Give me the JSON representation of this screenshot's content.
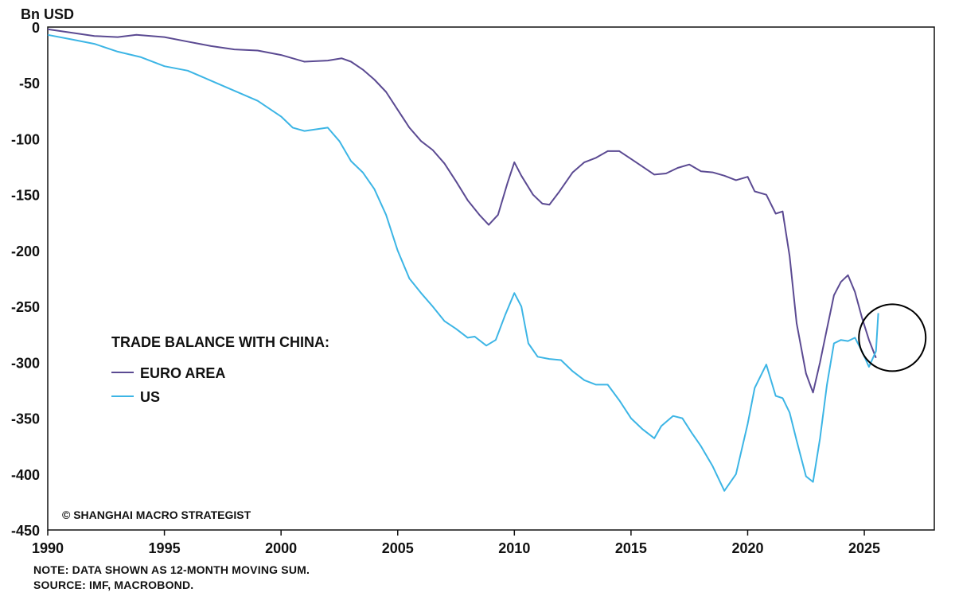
{
  "chart_data": {
    "type": "line",
    "ylabel": "Bn USD",
    "ylim": [
      -450,
      0
    ],
    "xlim": [
      1990,
      2028
    ],
    "yticks": [
      0,
      -50,
      -100,
      -150,
      -200,
      -250,
      -300,
      -350,
      -400,
      -450
    ],
    "xticks": [
      1990,
      1995,
      2000,
      2005,
      2010,
      2015,
      2020,
      2025
    ],
    "grid": false,
    "legend": {
      "title": "TRADE BALANCE WITH CHINA:",
      "position": "left-middle"
    },
    "series": [
      {
        "name": "EURO AREA",
        "color": "#5b4a92",
        "points": [
          [
            1990.0,
            -2
          ],
          [
            1991.0,
            -5
          ],
          [
            1992.0,
            -8
          ],
          [
            1993.0,
            -9
          ],
          [
            1993.8,
            -7
          ],
          [
            1995.0,
            -9
          ],
          [
            1996.0,
            -13
          ],
          [
            1997.0,
            -17
          ],
          [
            1998.0,
            -20
          ],
          [
            1999.0,
            -21
          ],
          [
            2000.0,
            -25
          ],
          [
            2001.0,
            -31
          ],
          [
            2002.0,
            -30
          ],
          [
            2002.6,
            -28
          ],
          [
            2003.0,
            -31
          ],
          [
            2003.5,
            -38
          ],
          [
            2004.0,
            -47
          ],
          [
            2004.5,
            -58
          ],
          [
            2005.0,
            -74
          ],
          [
            2005.5,
            -90
          ],
          [
            2006.0,
            -102
          ],
          [
            2006.5,
            -110
          ],
          [
            2007.0,
            -122
          ],
          [
            2007.5,
            -138
          ],
          [
            2008.0,
            -155
          ],
          [
            2008.5,
            -168
          ],
          [
            2008.9,
            -177
          ],
          [
            2009.3,
            -168
          ],
          [
            2009.7,
            -140
          ],
          [
            2010.0,
            -121
          ],
          [
            2010.3,
            -133
          ],
          [
            2010.8,
            -150
          ],
          [
            2011.2,
            -158
          ],
          [
            2011.5,
            -159
          ],
          [
            2011.9,
            -148
          ],
          [
            2012.5,
            -130
          ],
          [
            2013.0,
            -121
          ],
          [
            2013.5,
            -117
          ],
          [
            2014.0,
            -111
          ],
          [
            2014.5,
            -111
          ],
          [
            2015.0,
            -118
          ],
          [
            2015.5,
            -125
          ],
          [
            2016.0,
            -132
          ],
          [
            2016.5,
            -131
          ],
          [
            2017.0,
            -126
          ],
          [
            2017.5,
            -123
          ],
          [
            2018.0,
            -129
          ],
          [
            2018.5,
            -130
          ],
          [
            2019.0,
            -133
          ],
          [
            2019.5,
            -137
          ],
          [
            2020.0,
            -134
          ],
          [
            2020.3,
            -147
          ],
          [
            2020.8,
            -150
          ],
          [
            2021.2,
            -167
          ],
          [
            2021.5,
            -165
          ],
          [
            2021.8,
            -205
          ],
          [
            2022.1,
            -265
          ],
          [
            2022.5,
            -310
          ],
          [
            2022.8,
            -327
          ],
          [
            2023.1,
            -300
          ],
          [
            2023.4,
            -270
          ],
          [
            2023.7,
            -240
          ],
          [
            2024.0,
            -228
          ],
          [
            2024.3,
            -222
          ],
          [
            2024.6,
            -237
          ],
          [
            2024.9,
            -260
          ],
          [
            2025.2,
            -280
          ],
          [
            2025.5,
            -296
          ]
        ]
      },
      {
        "name": "US",
        "color": "#3cb5e5",
        "points": [
          [
            1990.0,
            -7
          ],
          [
            1991.0,
            -11
          ],
          [
            1992.0,
            -15
          ],
          [
            1993.0,
            -22
          ],
          [
            1994.0,
            -27
          ],
          [
            1995.0,
            -35
          ],
          [
            1996.0,
            -39
          ],
          [
            1997.0,
            -48
          ],
          [
            1998.0,
            -57
          ],
          [
            1999.0,
            -66
          ],
          [
            2000.0,
            -80
          ],
          [
            2000.5,
            -90
          ],
          [
            2001.0,
            -93
          ],
          [
            2002.0,
            -90
          ],
          [
            2002.5,
            -102
          ],
          [
            2003.0,
            -120
          ],
          [
            2003.5,
            -130
          ],
          [
            2004.0,
            -145
          ],
          [
            2004.5,
            -168
          ],
          [
            2005.0,
            -200
          ],
          [
            2005.5,
            -225
          ],
          [
            2006.0,
            -238
          ],
          [
            2006.5,
            -250
          ],
          [
            2007.0,
            -263
          ],
          [
            2007.5,
            -270
          ],
          [
            2008.0,
            -278
          ],
          [
            2008.3,
            -277
          ],
          [
            2008.8,
            -285
          ],
          [
            2009.2,
            -280
          ],
          [
            2009.6,
            -258
          ],
          [
            2010.0,
            -238
          ],
          [
            2010.3,
            -250
          ],
          [
            2010.6,
            -283
          ],
          [
            2011.0,
            -295
          ],
          [
            2011.5,
            -297
          ],
          [
            2012.0,
            -298
          ],
          [
            2012.5,
            -308
          ],
          [
            2013.0,
            -316
          ],
          [
            2013.5,
            -320
          ],
          [
            2014.0,
            -320
          ],
          [
            2014.5,
            -334
          ],
          [
            2015.0,
            -350
          ],
          [
            2015.5,
            -360
          ],
          [
            2016.0,
            -368
          ],
          [
            2016.3,
            -357
          ],
          [
            2016.8,
            -348
          ],
          [
            2017.2,
            -350
          ],
          [
            2017.6,
            -363
          ],
          [
            2018.0,
            -375
          ],
          [
            2018.5,
            -393
          ],
          [
            2019.0,
            -415
          ],
          [
            2019.5,
            -400
          ],
          [
            2020.0,
            -355
          ],
          [
            2020.3,
            -323
          ],
          [
            2020.8,
            -302
          ],
          [
            2021.2,
            -330
          ],
          [
            2021.5,
            -332
          ],
          [
            2021.8,
            -345
          ],
          [
            2022.1,
            -370
          ],
          [
            2022.5,
            -402
          ],
          [
            2022.8,
            -407
          ],
          [
            2023.1,
            -368
          ],
          [
            2023.4,
            -320
          ],
          [
            2023.7,
            -283
          ],
          [
            2024.0,
            -280
          ],
          [
            2024.3,
            -281
          ],
          [
            2024.6,
            -278
          ],
          [
            2024.9,
            -290
          ],
          [
            2025.2,
            -304
          ],
          [
            2025.5,
            -290
          ],
          [
            2025.6,
            -256
          ]
        ]
      }
    ]
  },
  "annotations": {
    "credit": "© SHANGHAI MACRO STRATEGIST",
    "highlight_circle": {
      "x": 2026.2,
      "y": -278
    }
  },
  "footnotes": {
    "note": "NOTE: DATA SHOWN AS 12-MONTH MOVING SUM.",
    "source": "SOURCE: IMF, MACROBOND."
  }
}
